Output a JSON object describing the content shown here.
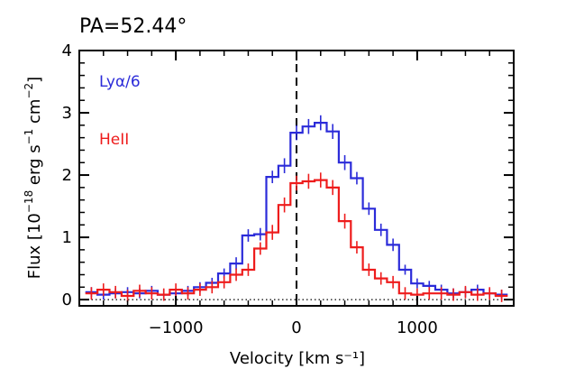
{
  "chart_data": {
    "type": "line",
    "style": "step histogram with error bars",
    "title": "PA=52.44°",
    "xlabel": "Velocity [km s⁻¹]",
    "ylabel_main": "Flux [10",
    "ylabel_exp": "−18",
    "ylabel_rest": " erg s",
    "ylabel_exp2": "−1",
    "ylabel_rest2": " cm",
    "ylabel_exp3": "−2",
    "ylabel_end": "]",
    "xlim": [
      -1800,
      1800
    ],
    "ylim": [
      -0.1,
      4.0
    ],
    "x_ticks": [
      -1000,
      0,
      1000
    ],
    "x_tick_labels": [
      "−1000",
      "0",
      "1000"
    ],
    "y_ticks": [
      0,
      1,
      2,
      3,
      4
    ],
    "y_tick_labels": [
      "0",
      "1",
      "2",
      "3",
      "4"
    ],
    "vline_x": 0,
    "hline_y": 0,
    "series": [
      {
        "name": "Lyα/6",
        "color": "#2b2bd9",
        "x": [
          -1700,
          -1600,
          -1500,
          -1400,
          -1300,
          -1200,
          -1100,
          -1000,
          -900,
          -800,
          -700,
          -600,
          -500,
          -400,
          -300,
          -200,
          -100,
          0,
          100,
          200,
          300,
          400,
          500,
          600,
          700,
          800,
          900,
          1000,
          1100,
          1200,
          1300,
          1400,
          1500,
          1600,
          1700
        ],
        "y": [
          0.12,
          0.08,
          0.1,
          0.12,
          0.1,
          0.14,
          0.08,
          0.1,
          0.14,
          0.2,
          0.27,
          0.42,
          0.58,
          1.03,
          1.05,
          1.97,
          2.15,
          2.68,
          2.78,
          2.84,
          2.7,
          2.2,
          1.95,
          1.46,
          1.12,
          0.88,
          0.48,
          0.26,
          0.22,
          0.16,
          0.1,
          0.12,
          0.16,
          0.1,
          0.08
        ],
        "err": [
          0.08,
          0.08,
          0.08,
          0.08,
          0.08,
          0.08,
          0.08,
          0.08,
          0.08,
          0.08,
          0.08,
          0.08,
          0.1,
          0.1,
          0.1,
          0.1,
          0.12,
          0.12,
          0.12,
          0.12,
          0.12,
          0.12,
          0.1,
          0.1,
          0.1,
          0.1,
          0.08,
          0.08,
          0.08,
          0.08,
          0.08,
          0.08,
          0.08,
          0.08,
          0.08
        ]
      },
      {
        "name": "HeII",
        "color": "#ee1c1c",
        "x": [
          -1700,
          -1600,
          -1500,
          -1400,
          -1300,
          -1200,
          -1100,
          -1000,
          -900,
          -800,
          -700,
          -600,
          -500,
          -400,
          -300,
          -200,
          -100,
          0,
          100,
          200,
          300,
          400,
          500,
          600,
          700,
          800,
          900,
          1000,
          1100,
          1200,
          1300,
          1400,
          1500,
          1600,
          1700
        ],
        "y": [
          0.1,
          0.16,
          0.12,
          0.06,
          0.14,
          0.1,
          0.08,
          0.16,
          0.1,
          0.16,
          0.2,
          0.28,
          0.4,
          0.48,
          0.82,
          1.08,
          1.52,
          1.87,
          1.9,
          1.92,
          1.8,
          1.26,
          0.84,
          0.48,
          0.34,
          0.28,
          0.1,
          0.08,
          0.1,
          0.1,
          0.08,
          0.12,
          0.08,
          0.1,
          0.06
        ],
        "err": [
          0.1,
          0.1,
          0.1,
          0.1,
          0.1,
          0.1,
          0.1,
          0.1,
          0.1,
          0.1,
          0.1,
          0.1,
          0.1,
          0.1,
          0.1,
          0.12,
          0.12,
          0.12,
          0.12,
          0.12,
          0.12,
          0.12,
          0.1,
          0.1,
          0.1,
          0.1,
          0.1,
          0.1,
          0.1,
          0.1,
          0.1,
          0.1,
          0.1,
          0.1,
          0.1
        ]
      }
    ],
    "legend": [
      {
        "label": "Lyα/6",
        "color": "#2b2bd9"
      },
      {
        "label": "HeII",
        "color": "#ee1c1c"
      }
    ]
  }
}
